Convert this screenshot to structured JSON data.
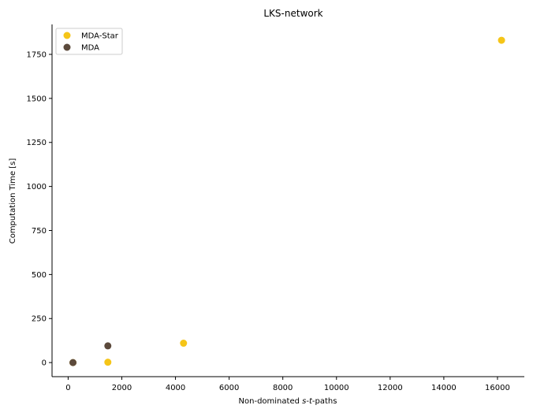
{
  "chart_data": {
    "type": "scatter",
    "title": "LKS-network",
    "xlabel": {
      "before": "Non-dominated ",
      "italic1": "s",
      "dash": "-",
      "italic2": "t",
      "after": "-paths"
    },
    "ylabel": "Computation Time [s]",
    "xlim": [
      -600,
      17000
    ],
    "ylim": [
      -80,
      1920
    ],
    "x_ticks": [
      0,
      2000,
      4000,
      6000,
      8000,
      10000,
      12000,
      14000,
      16000
    ],
    "y_ticks": [
      0,
      250,
      500,
      750,
      1000,
      1250,
      1500,
      1750
    ],
    "grid": false,
    "legend_position": "top-left",
    "series": [
      {
        "name": "MDA-Star",
        "color": "#f5c518",
        "points": [
          {
            "x": 180,
            "y": 0
          },
          {
            "x": 1480,
            "y": 2
          },
          {
            "x": 4300,
            "y": 110
          },
          {
            "x": 16150,
            "y": 1830
          }
        ]
      },
      {
        "name": "MDA",
        "color": "#5c4a3c",
        "points": [
          {
            "x": 180,
            "y": 0
          },
          {
            "x": 1480,
            "y": 95
          }
        ]
      }
    ]
  }
}
